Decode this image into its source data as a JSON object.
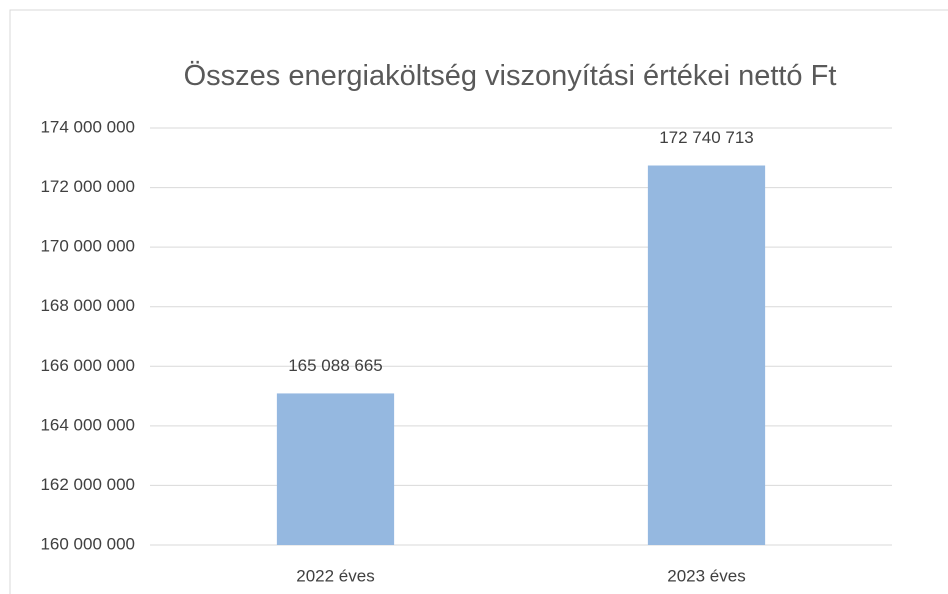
{
  "chart_data": {
    "type": "bar",
    "title": "Összes energiaköltség viszonyítási értékei nettó Ft",
    "categories": [
      "2022 éves",
      "2023 éves"
    ],
    "values": [
      165088665,
      172740713
    ],
    "value_labels": [
      "165 088 665",
      "172 740 713"
    ],
    "color": "#95b8e0",
    "ylim": [
      160000000,
      174000000
    ],
    "yticks": [
      {
        "value": 160000000,
        "label": "160 000 000"
      },
      {
        "value": 162000000,
        "label": "162 000 000"
      },
      {
        "value": 164000000,
        "label": "164 000 000"
      },
      {
        "value": 166000000,
        "label": "166 000 000"
      },
      {
        "value": 168000000,
        "label": "168 000 000"
      },
      {
        "value": 170000000,
        "label": "170 000 000"
      },
      {
        "value": 172000000,
        "label": "172 000 000"
      },
      {
        "value": 174000000,
        "label": "174 000 000"
      }
    ],
    "grid": true
  }
}
